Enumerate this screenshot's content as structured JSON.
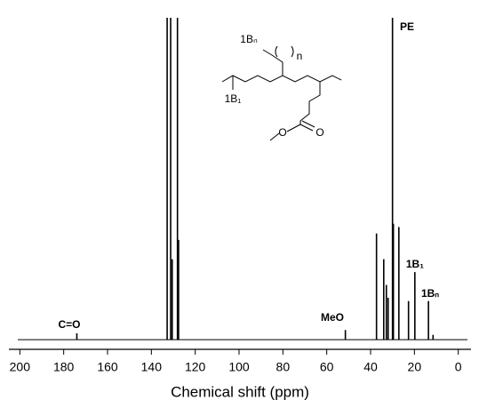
{
  "chart_data": {
    "type": "stick",
    "x_label": "Chemical shift (ppm)",
    "x": [
      174,
      132.8,
      131.2,
      130.5,
      128.1,
      127.6,
      51.5,
      37.3,
      34.0,
      32.8,
      32.0,
      30.0,
      29.6,
      27.1,
      22.7,
      19.8,
      13.6,
      11.5
    ],
    "values": [
      2,
      100,
      100,
      25,
      100,
      31,
      3,
      33,
      25,
      17,
      13,
      100,
      36,
      35,
      12,
      21,
      12,
      1.5
    ],
    "color": "#000000",
    "xlim": [
      205,
      -5
    ],
    "xticks": [
      200,
      180,
      160,
      140,
      120,
      100,
      80,
      60,
      40,
      20,
      0
    ],
    "ylim": [
      -3,
      100
    ],
    "annotations": [
      "C=O",
      "MeO",
      "PE",
      "1B₁",
      "1Bₙ"
    ],
    "structure_labels": [
      "1Bₙ",
      "n",
      "1B₁",
      "O",
      "O"
    ]
  }
}
